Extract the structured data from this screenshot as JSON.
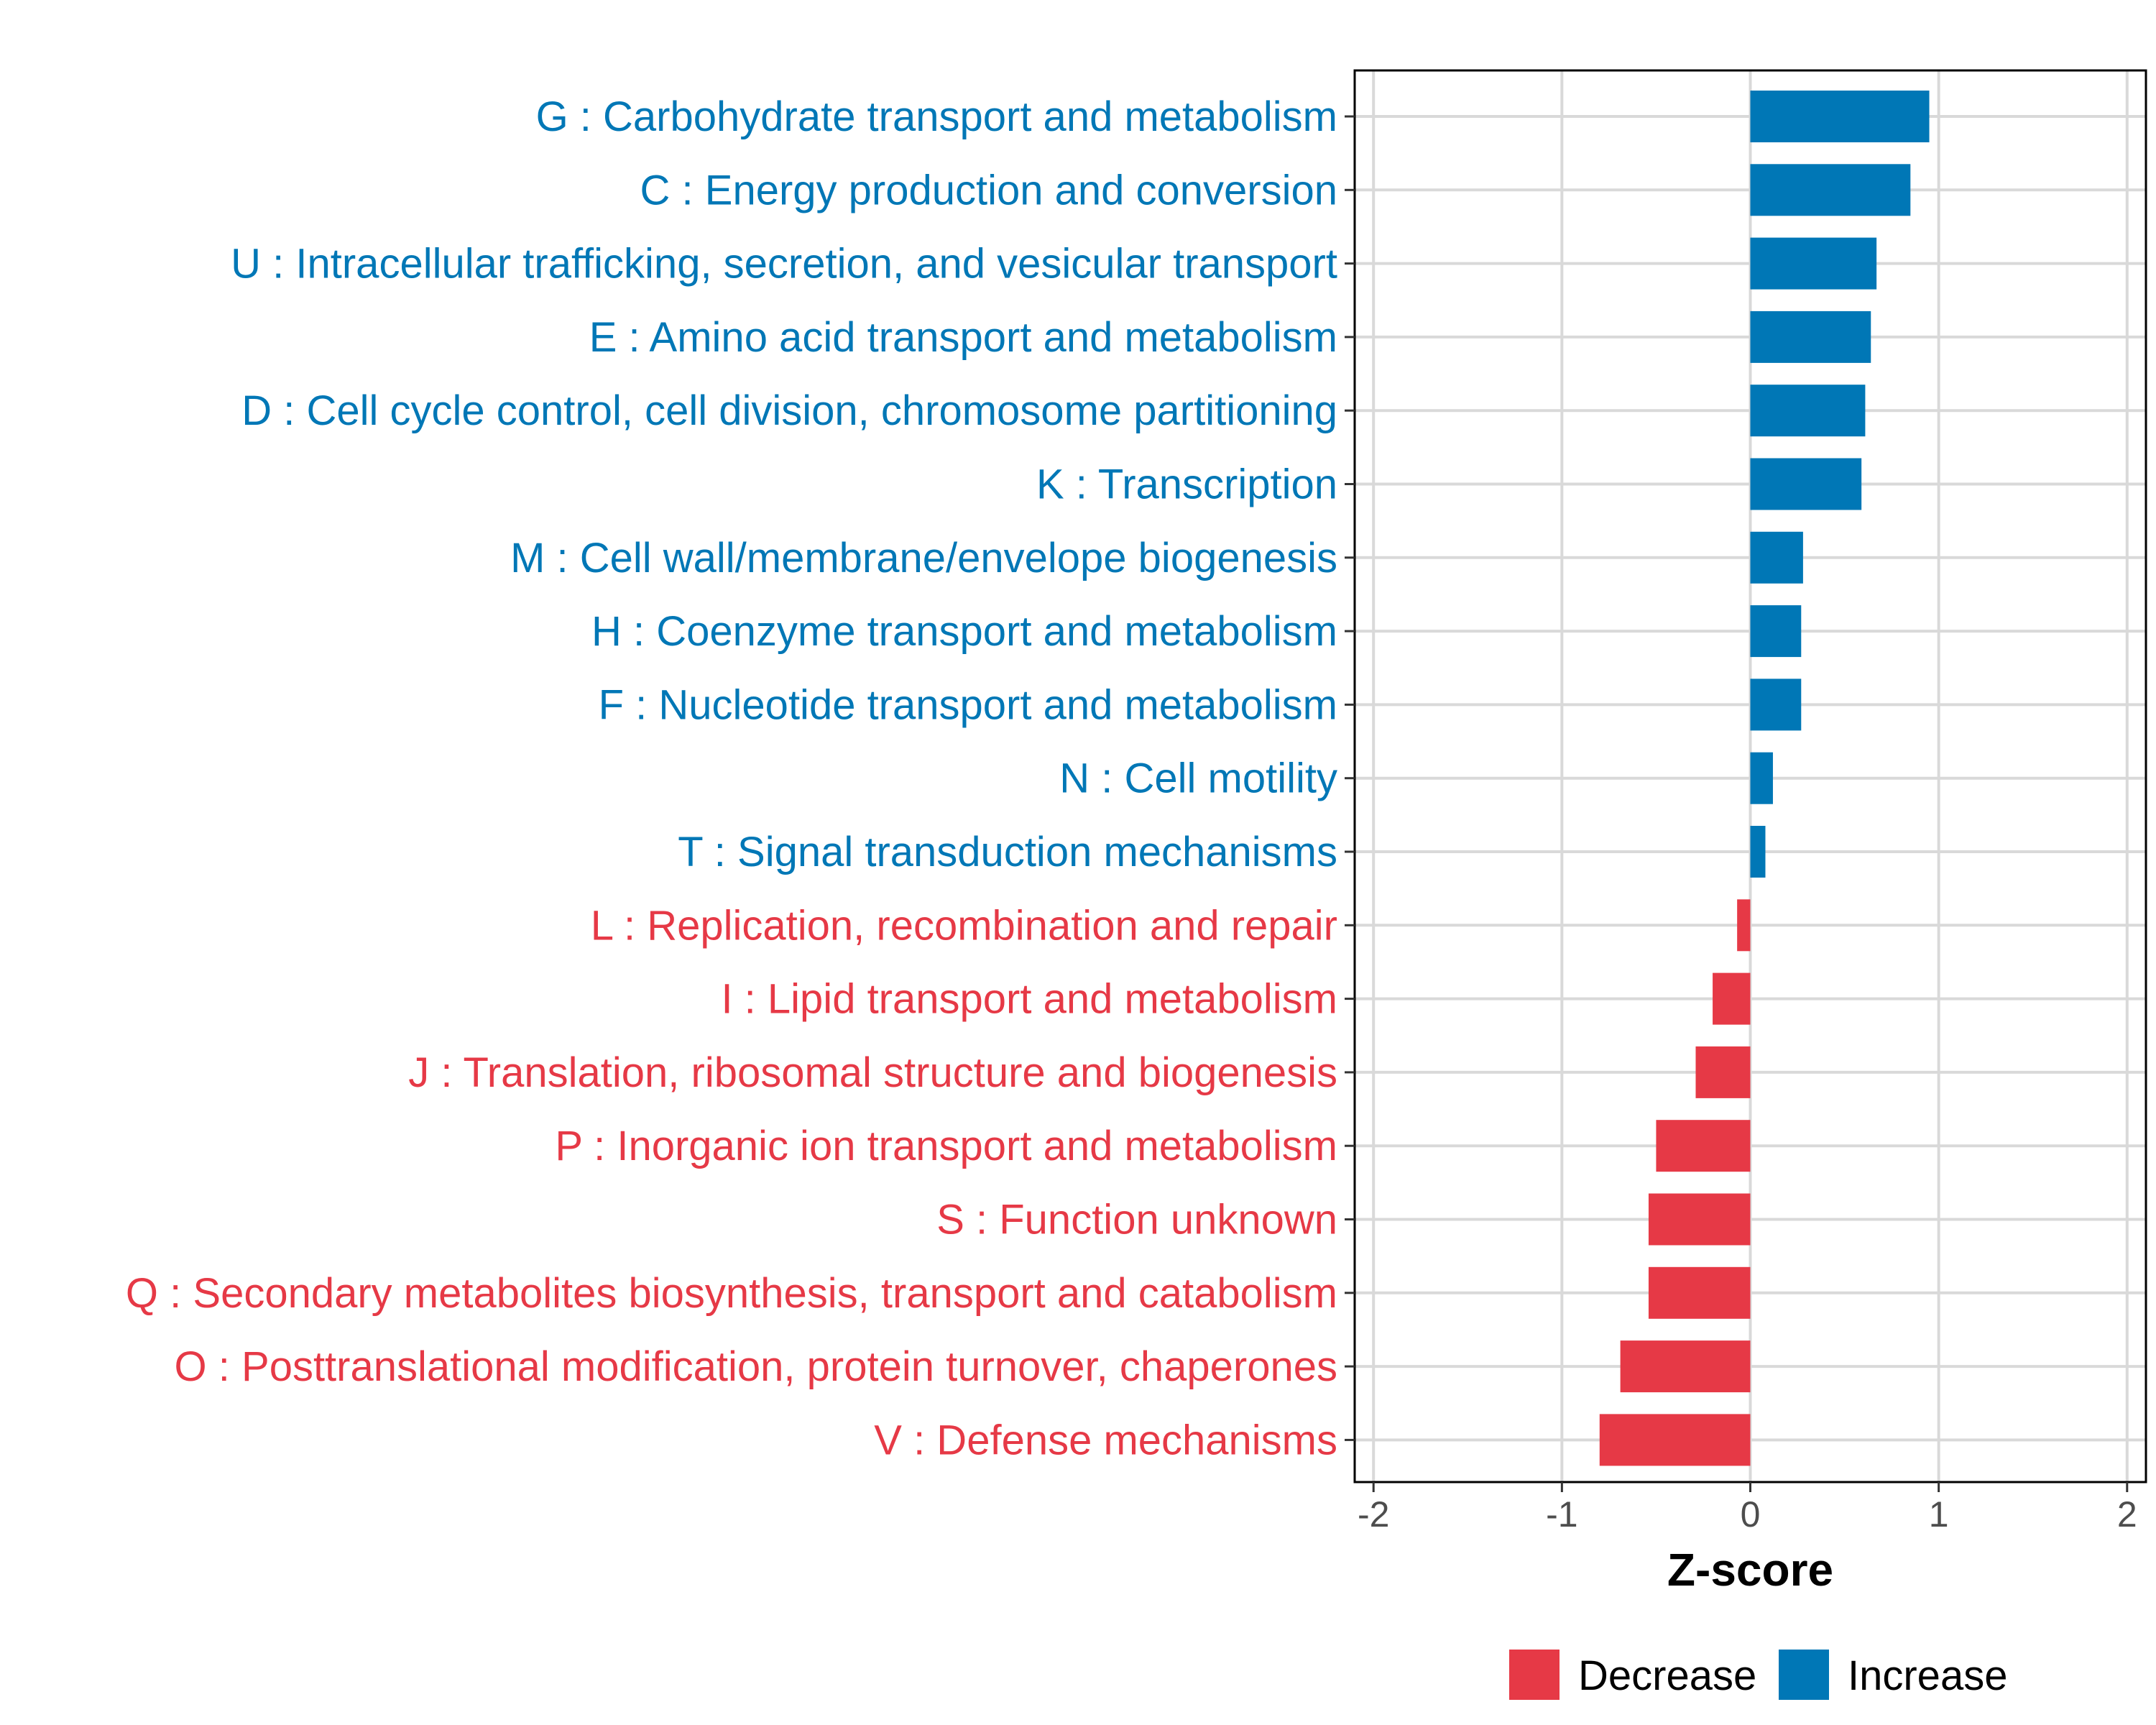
{
  "chart_data": {
    "type": "bar",
    "orientation": "horizontal",
    "title": "",
    "xlabel": "Z-score",
    "ylabel": "",
    "xlim": [
      -2.1,
      2.1
    ],
    "xticks": [
      -2,
      -1,
      0,
      1,
      2
    ],
    "xtick_labels": [
      "-2",
      "-1",
      "0",
      "1",
      "2"
    ],
    "grid": true,
    "categories": [
      "G : Carbohydrate transport and metabolism",
      "C : Energy production and conversion",
      "U : Intracellular trafficking, secretion, and vesicular transport",
      "E : Amino acid transport and metabolism",
      "D : Cell cycle control, cell division, chromosome partitioning",
      "K : Transcription",
      "M : Cell wall/membrane/envelope biogenesis",
      "H : Coenzyme transport and metabolism",
      "F : Nucleotide transport and metabolism",
      "N : Cell motility",
      "T : Signal transduction mechanisms",
      "L : Replication, recombination and repair",
      "I : Lipid transport and metabolism",
      "J : Translation, ribosomal structure and biogenesis",
      "P : Inorganic ion transport and metabolism",
      "S : Function unknown",
      "Q : Secondary metabolites biosynthesis, transport and catabolism",
      "O : Posttranslational modification, protein turnover, chaperones",
      "V : Defense mechanisms"
    ],
    "values": [
      0.95,
      0.85,
      0.67,
      0.64,
      0.61,
      0.59,
      0.28,
      0.27,
      0.27,
      0.12,
      0.08,
      -0.07,
      -0.2,
      -0.29,
      -0.5,
      -0.54,
      -0.54,
      -0.69,
      -0.8
    ],
    "groups": [
      "Increase",
      "Increase",
      "Increase",
      "Increase",
      "Increase",
      "Increase",
      "Increase",
      "Increase",
      "Increase",
      "Increase",
      "Increase",
      "Decrease",
      "Decrease",
      "Decrease",
      "Decrease",
      "Decrease",
      "Decrease",
      "Decrease",
      "Decrease"
    ],
    "legend": {
      "position": "bottom",
      "entries": [
        {
          "label": "Decrease",
          "color": "#E63946"
        },
        {
          "label": "Increase",
          "color": "#0077B6"
        }
      ]
    },
    "colors": {
      "Decrease": "#E63946",
      "Increase": "#0077B6",
      "grid": "#d9d9d9",
      "frame": "#000000"
    }
  }
}
